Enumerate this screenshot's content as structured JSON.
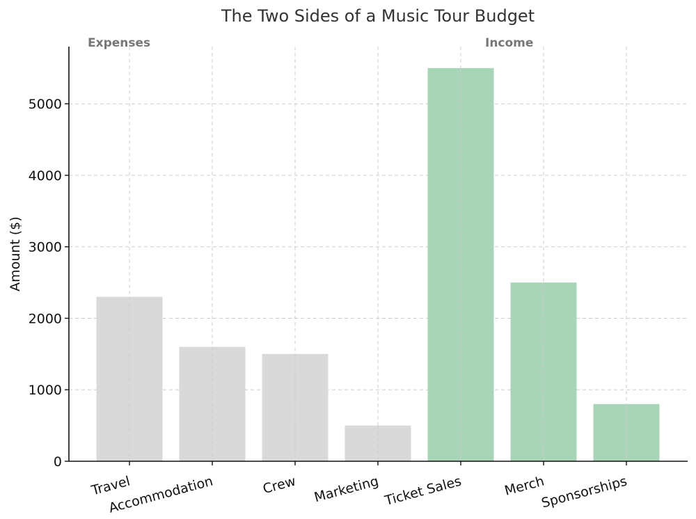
{
  "chart_data": {
    "type": "bar",
    "title": "The Two Sides of a Music Tour Budget",
    "xlabel": "",
    "ylabel": "Amount ($)",
    "ylim": [
      0,
      5800
    ],
    "yticks": [
      0,
      1000,
      2000,
      3000,
      4000,
      5000
    ],
    "grid": true,
    "categories": [
      "Travel",
      "Accommodation",
      "Crew",
      "Marketing",
      "Ticket Sales",
      "Merch",
      "Sponsorships"
    ],
    "values": [
      2300,
      1600,
      1500,
      500,
      5500,
      2500,
      800
    ],
    "groups": [
      {
        "label": "Expenses",
        "categories": [
          "Travel",
          "Accommodation",
          "Crew",
          "Marketing"
        ],
        "color": "#d9d9d9"
      },
      {
        "label": "Income",
        "categories": [
          "Ticket Sales",
          "Merch",
          "Sponsorships"
        ],
        "color": "#a8d5b8"
      }
    ]
  }
}
